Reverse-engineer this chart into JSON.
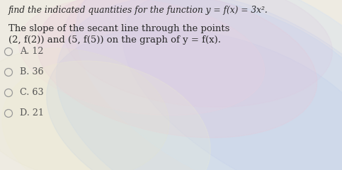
{
  "title_line": "find the indicated quantities for the function y = f(x) = 3x².",
  "body_line1": "The slope of the secant line through the points",
  "body_line2": "(2, f(2)) and (5, f(5)) on the graph of y = f(x).",
  "options": [
    {
      "label": "A.",
      "value": "12"
    },
    {
      "label": "B.",
      "value": "36"
    },
    {
      "label": "C.",
      "value": "63"
    },
    {
      "label": "D.",
      "value": "21"
    }
  ],
  "bg_base": "#f0ede4",
  "text_color": "#2a2a2a",
  "option_text_color": "#555555",
  "radio_color": "#999999",
  "title_fontsize": 8.8,
  "body_fontsize": 9.5,
  "option_fontsize": 9.2
}
